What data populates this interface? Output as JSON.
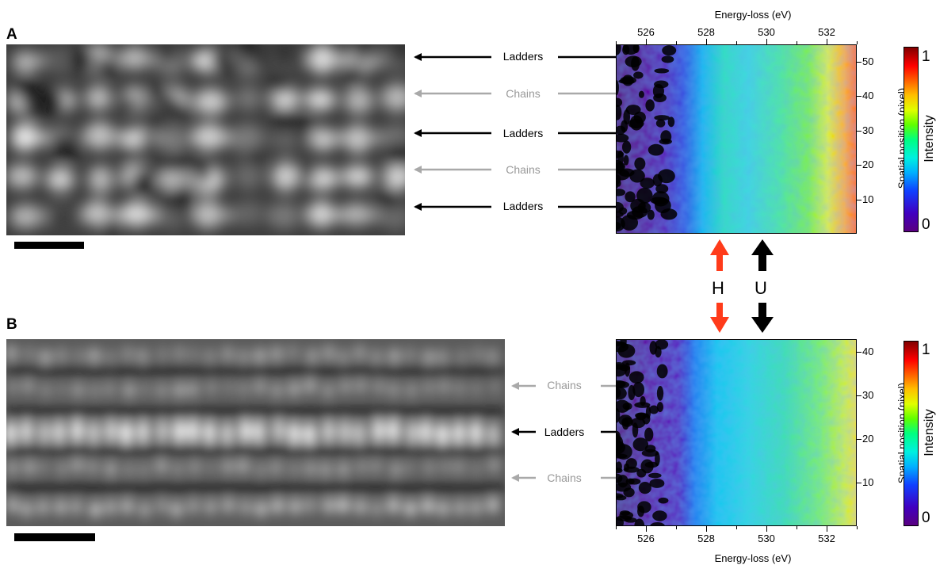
{
  "panels": [
    {
      "letter": "A",
      "rows": [
        {
          "label": "Ladders",
          "kind": "ladder"
        },
        {
          "label": "Chains",
          "kind": "chain"
        },
        {
          "label": "Ladders",
          "kind": "ladder"
        },
        {
          "label": "Chains",
          "kind": "chain"
        },
        {
          "label": "Ladders",
          "kind": "ladder"
        }
      ],
      "xaxis": {
        "title": "Energy-loss (eV)",
        "position": "top",
        "ticks": [
          "526",
          "528",
          "530",
          "532"
        ],
        "range": [
          525,
          533
        ]
      },
      "yaxis": {
        "title": "Spatial position (pixel)",
        "ticks": [
          "10",
          "20",
          "30",
          "40",
          "50"
        ],
        "range": [
          0,
          55
        ]
      },
      "colorbar": {
        "title": "Intensity",
        "ticks": [
          "0",
          "1"
        ]
      }
    },
    {
      "letter": "B",
      "rows": [
        {
          "label": "Chains",
          "kind": "chain"
        },
        {
          "label": "Ladders",
          "kind": "ladder"
        },
        {
          "label": "Chains",
          "kind": "chain"
        }
      ],
      "xaxis": {
        "title": "Energy-loss (eV)",
        "position": "bottom",
        "ticks": [
          "526",
          "528",
          "530",
          "532"
        ],
        "range": [
          525,
          533
        ]
      },
      "yaxis": {
        "title": "Spatial position (pixel)",
        "ticks": [
          "10",
          "20",
          "30",
          "40"
        ],
        "range": [
          0,
          43
        ]
      },
      "colorbar": {
        "title": "Intensity",
        "ticks": [
          "0",
          "1"
        ]
      }
    }
  ],
  "markers": {
    "h": {
      "label": "H",
      "color": "#ff3b1a",
      "energy": 528.3
    },
    "u": {
      "label": "U",
      "color": "#000000",
      "energy": 529.9
    }
  },
  "colors": {
    "ladder_arrow": "#000000",
    "chain_arrow": "#a9a9a9"
  }
}
